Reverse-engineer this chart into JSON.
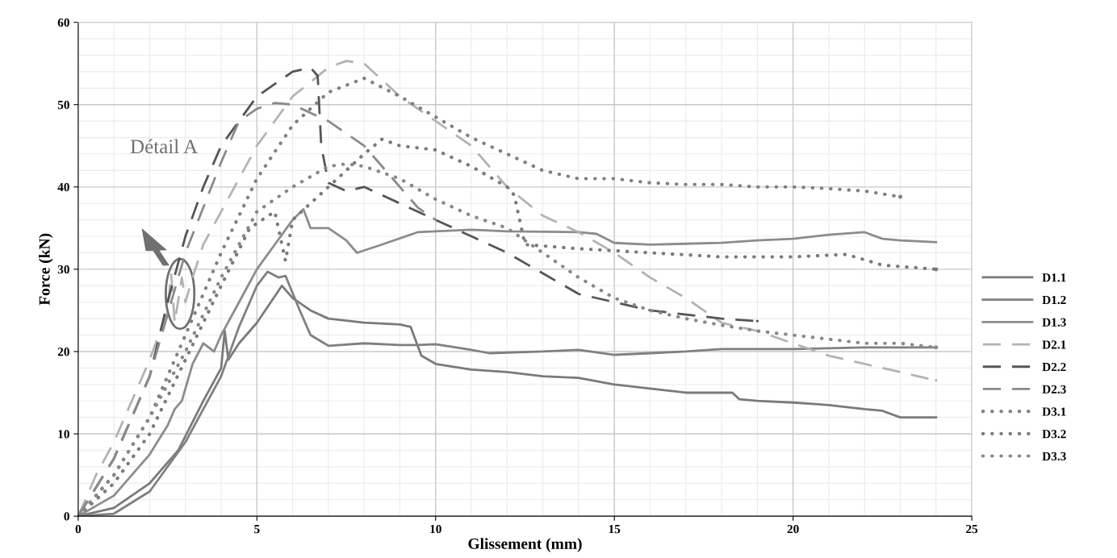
{
  "chart_data": {
    "type": "line",
    "xlabel": "Glissement (mm)",
    "ylabel": "Force (kN)",
    "xlim": [
      0,
      25
    ],
    "ylim": [
      0,
      60
    ],
    "xticks": [
      0,
      5,
      10,
      15,
      20,
      25
    ],
    "yticks": [
      0,
      10,
      20,
      30,
      40,
      50,
      60
    ],
    "grid": true,
    "legend": "right",
    "marker": "none",
    "annotations": [
      "Détail A"
    ],
    "series": [
      {
        "name": "D1.1",
        "color": "#7a7a7a",
        "line_style": "solid",
        "x": [
          0,
          1,
          2,
          2.8,
          3.5,
          4,
          4.1,
          4.2,
          4.5,
          5,
          5.7,
          6,
          6.5,
          7,
          8,
          9,
          9.3,
          9.6,
          10,
          11,
          12,
          13,
          14,
          15,
          16,
          17,
          18,
          18.3,
          18.5,
          19,
          20,
          21,
          22,
          22.5,
          23,
          24
        ],
        "values": [
          0,
          1,
          4,
          8,
          14,
          18,
          22.5,
          19,
          21,
          23.5,
          28,
          26.5,
          25,
          24,
          23.5,
          23.3,
          23,
          19.5,
          18.5,
          17.8,
          17.5,
          17,
          16.8,
          16,
          15.5,
          15,
          15,
          15,
          14.2,
          14,
          13.8,
          13.5,
          13,
          12.8,
          12,
          12
        ]
      },
      {
        "name": "D1.2",
        "color": "#808080",
        "line_style": "solid",
        "x": [
          0,
          1,
          2,
          3,
          4,
          4.5,
          5,
          5.3,
          5.6,
          5.8,
          6.2,
          6.5,
          7,
          8,
          9,
          9.5,
          10,
          11,
          11.5,
          13,
          14,
          15,
          16,
          17,
          18,
          20,
          22,
          24
        ],
        "values": [
          0,
          0.3,
          3,
          9,
          17,
          23,
          28,
          29.7,
          29,
          29.2,
          25,
          22,
          20.7,
          21,
          20.8,
          20.8,
          20.9,
          20.2,
          19.8,
          20,
          20.2,
          19.6,
          19.8,
          20,
          20.3,
          20.3,
          20.5,
          20.5
        ]
      },
      {
        "name": "D1.3",
        "color": "#8c8c8c",
        "line_style": "solid",
        "x": [
          0,
          1,
          2,
          2.5,
          2.7,
          2.9,
          3.2,
          3.5,
          3.8,
          4,
          4.5,
          5,
          5.5,
          6,
          6.3,
          6.5,
          7,
          7.5,
          7.8,
          8.5,
          9.5,
          11,
          12,
          14,
          14.5,
          15,
          16,
          17,
          18,
          19,
          20,
          21,
          22,
          22.5,
          23,
          24
        ],
        "values": [
          0,
          2.5,
          7.5,
          11,
          13,
          14,
          18.5,
          21,
          20,
          22,
          26,
          30,
          33,
          36,
          37.3,
          35,
          35,
          33.5,
          32,
          33,
          34.5,
          34.8,
          34.6,
          34.5,
          34.3,
          33.2,
          33,
          33.1,
          33.2,
          33.5,
          33.7,
          34.2,
          34.5,
          33.7,
          33.5,
          33.3
        ]
      },
      {
        "name": "D2.1",
        "color": "#b3b3b3",
        "line_style": "dashed",
        "x": [
          0,
          0.5,
          1,
          1.5,
          2,
          2.5,
          2.6,
          2.7,
          2.9,
          3,
          3.2,
          3.5,
          4,
          5,
          6,
          7,
          7.5,
          8,
          9,
          10,
          11,
          12,
          13,
          14,
          15,
          16,
          17,
          18,
          19,
          20,
          21,
          22,
          23,
          24
        ],
        "values": [
          0,
          5,
          9,
          14,
          19,
          25,
          29.5,
          23.5,
          29,
          26,
          29,
          33,
          37,
          45,
          51,
          54.5,
          55.3,
          55,
          51,
          48,
          45,
          40,
          36.5,
          34.5,
          32,
          29,
          26.5,
          23.5,
          22.5,
          21,
          19.5,
          18.5,
          17.5,
          16.5
        ]
      },
      {
        "name": "D2.2",
        "color": "#555555",
        "line_style": "dashed",
        "x": [
          0,
          1,
          2,
          2.5,
          3,
          3.5,
          4,
          5,
          6,
          6.5,
          6.7,
          6.8,
          7,
          7.5,
          8,
          9,
          10,
          11,
          12,
          13,
          14,
          15,
          16,
          17,
          18,
          19
        ],
        "values": [
          0,
          7,
          17,
          26,
          34,
          40,
          45,
          51,
          54,
          54.5,
          53.5,
          45,
          40.5,
          39.5,
          40,
          38,
          36,
          34,
          32,
          29.5,
          27,
          26,
          25,
          24.5,
          24,
          23.7
        ]
      },
      {
        "name": "D2.3",
        "color": "#8a8a8a",
        "line_style": "dashed",
        "x": [
          0,
          1,
          2,
          3,
          4,
          4.5,
          5,
          5.5,
          6,
          7,
          8,
          9,
          9.5,
          10
        ],
        "values": [
          0,
          7,
          17,
          32,
          43,
          48,
          49.5,
          50.2,
          50,
          48,
          45,
          40,
          37.5,
          36
        ]
      },
      {
        "name": "D3.1",
        "color": "#808080",
        "line_style": "dotted",
        "x": [
          0,
          1,
          2,
          3,
          4,
          5,
          6,
          7,
          8,
          9,
          10,
          11,
          12,
          13,
          14,
          15,
          16,
          17,
          18,
          19,
          20,
          21,
          22,
          23
        ],
        "values": [
          0,
          5,
          12,
          22,
          32,
          41,
          47.5,
          51.5,
          53.2,
          51,
          48.5,
          46,
          44,
          42,
          41,
          41,
          40.5,
          40.3,
          40.3,
          40,
          40,
          39.8,
          39.5,
          38.8
        ]
      },
      {
        "name": "D3.2",
        "color": "#7a7a7a",
        "line_style": "dotted",
        "x": [
          0,
          1,
          2,
          3,
          4,
          4.8,
          5.5,
          5.8,
          6,
          7,
          8,
          8.5,
          9,
          10,
          11,
          12,
          12.2,
          12.4,
          12.5,
          14,
          16,
          18,
          20,
          21.5,
          22.5,
          24
        ],
        "values": [
          0,
          4,
          10,
          19,
          28,
          35,
          37,
          31,
          36,
          40,
          44,
          45.8,
          45,
          44.5,
          42.5,
          40,
          39,
          35,
          33,
          32.5,
          32,
          31.5,
          31.5,
          31.8,
          30.5,
          30
        ]
      },
      {
        "name": "D3.3",
        "color": "#888888",
        "line_style": "dotted",
        "x": [
          0,
          1,
          2,
          3,
          4,
          5,
          6,
          7,
          7.5,
          8,
          9,
          10,
          11,
          12,
          13,
          14,
          15,
          16,
          17,
          18,
          19,
          20,
          21,
          22,
          23,
          24
        ],
        "values": [
          0,
          5,
          12,
          20,
          29,
          37,
          40,
          42.5,
          42.8,
          42.5,
          41,
          38.5,
          36.5,
          35,
          32,
          29,
          26.5,
          25,
          24,
          23.2,
          22.5,
          22,
          21.5,
          21,
          21,
          20.5
        ]
      }
    ]
  }
}
